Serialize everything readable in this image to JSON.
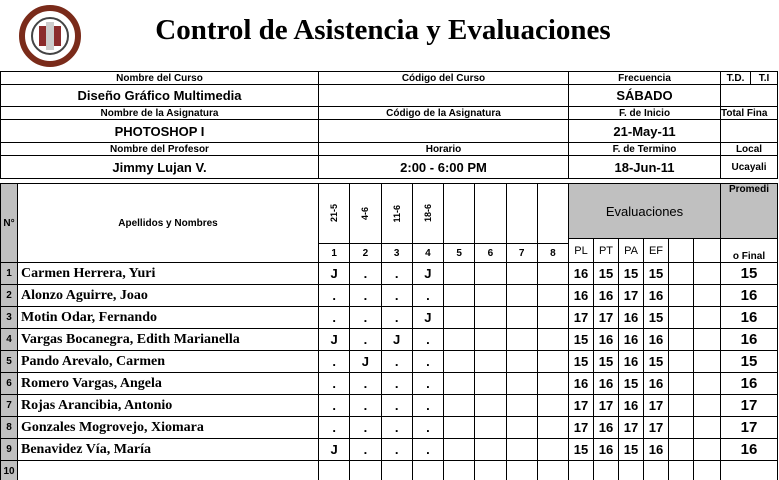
{
  "header": {
    "title": "Control de Asistencia y Evaluaciones"
  },
  "course": {
    "course_name_label": "Nombre del Curso",
    "course_name": "Diseño Gráfico Multimedia",
    "course_code_label": "Código del Curso",
    "frequency_label": "Frecuencia",
    "frequency": "SÁBADO",
    "td_label": "T.D.",
    "ti_label": "T.I",
    "subject_label": "Nombre de la Asignatura",
    "subject": "PHOTOSHOP I",
    "subject_code_label": "Código de la Asignatura",
    "start_label": "F. de Inicio",
    "start": "21-May-11",
    "total_label": "Total Fina",
    "teacher_label": "Nombre del Profesor",
    "teacher": "Jimmy Lujan V.",
    "schedule_label": "Horario",
    "schedule": "2:00 - 6:00 PM",
    "end_label": "F. de Termino",
    "end": "18-Jun-11",
    "local_label": "Local",
    "local": "Ucayali"
  },
  "table": {
    "number_header": "N°",
    "name_header": "Apellidos y Nombres",
    "dates": [
      "21-5",
      "4-6",
      "11-6",
      "18-6"
    ],
    "session_numbers": [
      1,
      2,
      3,
      4,
      5,
      6,
      7,
      8
    ],
    "evaluations_header": "Evaluaciones",
    "grade_headers": [
      "PL",
      "PT",
      "PA",
      "EF"
    ],
    "average_header": "Promedi",
    "average_header_2": "o Final",
    "rows": [
      {
        "number": 1,
        "name": "Carmen Herrera, Yuri",
        "attendance": [
          "J",
          ".",
          ".",
          "J"
        ],
        "grades": [
          16,
          15,
          15,
          15
        ],
        "average": 15
      },
      {
        "number": 2,
        "name": "Alonzo Aguirre, Joao",
        "attendance": [
          ".",
          ".",
          ".",
          "."
        ],
        "grades": [
          16,
          16,
          17,
          16
        ],
        "average": 16
      },
      {
        "number": 3,
        "name": "Motin Odar, Fernando",
        "attendance": [
          ".",
          ".",
          ".",
          "J"
        ],
        "grades": [
          17,
          17,
          16,
          15
        ],
        "average": 16
      },
      {
        "number": 4,
        "name": "Vargas Bocanegra, Edith Marianella",
        "attendance": [
          "J",
          ".",
          "J",
          "."
        ],
        "grades": [
          15,
          16,
          16,
          16
        ],
        "average": 16
      },
      {
        "number": 5,
        "name": "Pando Arevalo, Carmen",
        "attendance": [
          ".",
          "J",
          ".",
          "."
        ],
        "grades": [
          15,
          15,
          16,
          15
        ],
        "average": 15
      },
      {
        "number": 6,
        "name": "Romero Vargas, Angela",
        "attendance": [
          ".",
          ".",
          ".",
          "."
        ],
        "grades": [
          16,
          16,
          15,
          16
        ],
        "average": 16
      },
      {
        "number": 7,
        "name": "Rojas Arancibia, Antonio",
        "attendance": [
          ".",
          ".",
          ".",
          "."
        ],
        "grades": [
          17,
          17,
          16,
          17
        ],
        "average": 17
      },
      {
        "number": 8,
        "name": "Gonzales Mogrovejo, Xiomara",
        "attendance": [
          ".",
          ".",
          ".",
          "."
        ],
        "grades": [
          17,
          16,
          17,
          17
        ],
        "average": 17
      },
      {
        "number": 9,
        "name": "Benavidez Vía, María",
        "attendance": [
          "J",
          ".",
          ".",
          "."
        ],
        "grades": [
          15,
          16,
          15,
          16
        ],
        "average": 16
      },
      {
        "number": 10
      }
    ]
  }
}
